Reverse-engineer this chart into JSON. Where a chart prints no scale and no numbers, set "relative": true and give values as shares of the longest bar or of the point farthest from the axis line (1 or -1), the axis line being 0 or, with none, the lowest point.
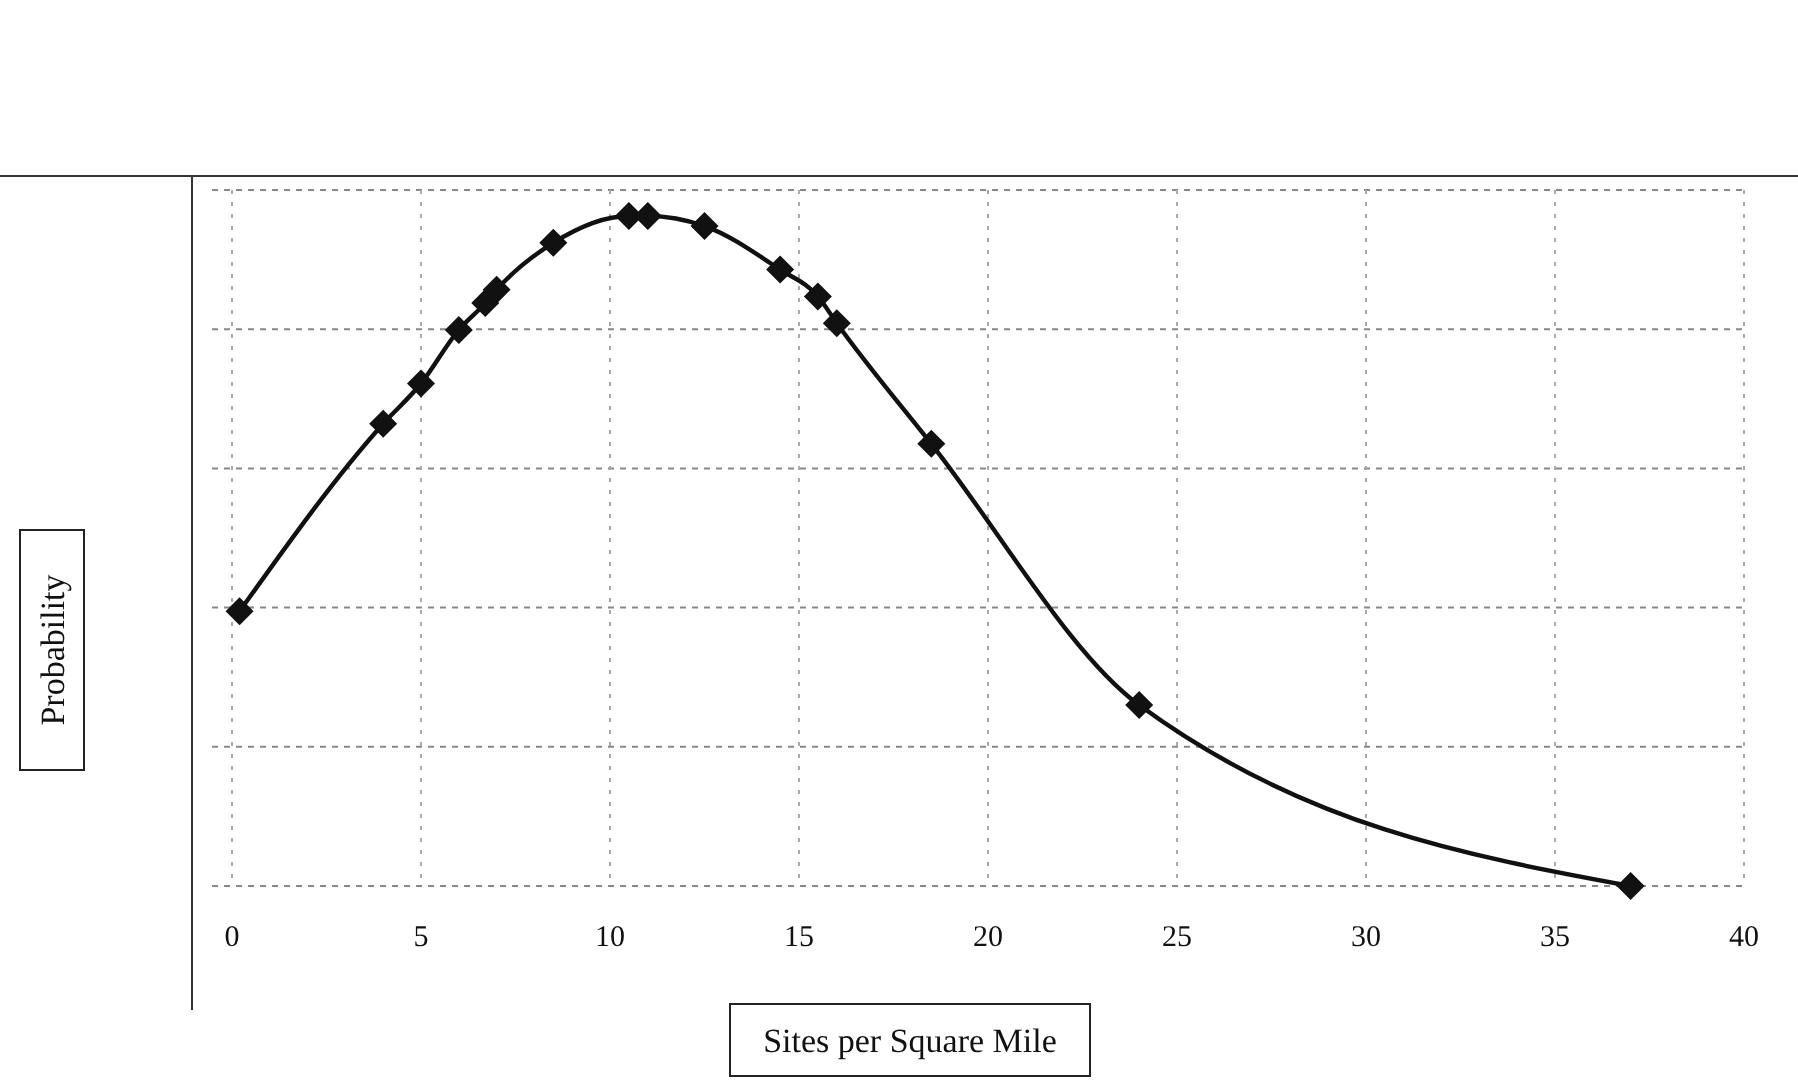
{
  "chart_data": {
    "type": "line",
    "relative": true,
    "xlabel": "Sites per Square Mile",
    "ylabel": "Probability",
    "xlim": [
      0,
      40
    ],
    "xticks": [
      0,
      5,
      10,
      15,
      20,
      25,
      30,
      35,
      40
    ],
    "grid": true,
    "marker": "diamond",
    "line_style": "solid",
    "series": [
      {
        "color": "#111111",
        "x": [
          0.2,
          4,
          5,
          6,
          6.7,
          7,
          8.5,
          10.5,
          11,
          12.5,
          14.5,
          15.5,
          16,
          18.5,
          24,
          37
        ],
        "values": [
          0.41,
          0.69,
          0.75,
          0.83,
          0.87,
          0.89,
          0.96,
          1.0,
          1.0,
          0.985,
          0.92,
          0.88,
          0.84,
          0.66,
          0.27,
          0
        ]
      }
    ]
  }
}
